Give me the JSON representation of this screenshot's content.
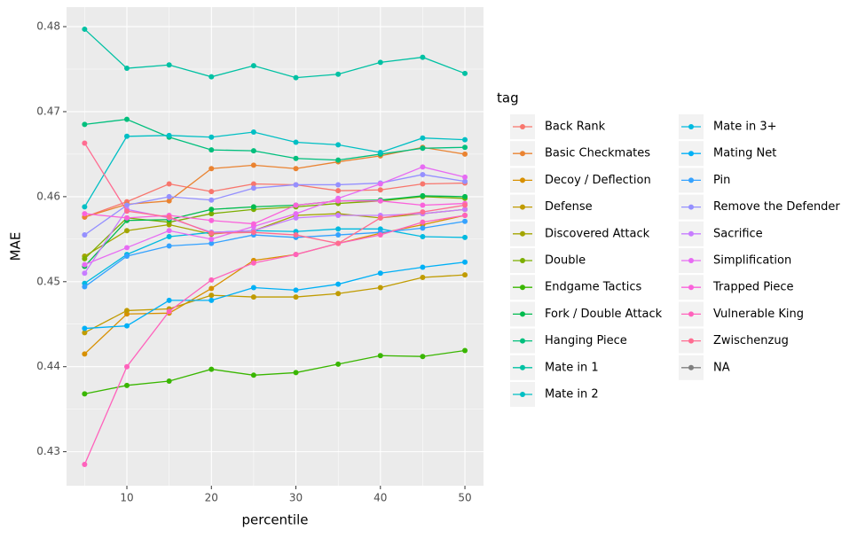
{
  "chart_data": {
    "type": "line",
    "x_label": "percentile",
    "y_label": "MAE",
    "legend_title": "tag",
    "x": [
      5,
      10,
      15,
      20,
      25,
      30,
      35,
      40,
      45,
      50
    ],
    "xlim": [
      2.86,
      52.2
    ],
    "xticks": [
      10,
      20,
      30,
      40,
      50
    ],
    "ylim": [
      0.426,
      0.4823
    ],
    "yticks": [
      0.43,
      0.44,
      0.45,
      0.46,
      0.47,
      0.48
    ],
    "grid": true,
    "series": [
      {
        "name": "Back Rank",
        "color": "#F8766D",
        "values": [
          0.4576,
          0.4594,
          0.4615,
          0.4606,
          0.4615,
          0.4614,
          0.4607,
          0.4608,
          0.4615,
          0.4616
        ]
      },
      {
        "name": "Basic Checkmates",
        "color": "#EA8331",
        "values": [
          0.4576,
          0.4591,
          0.4595,
          0.4633,
          0.4637,
          0.4633,
          0.4641,
          0.4648,
          0.4658,
          0.465
        ]
      },
      {
        "name": "Decoy / Deflection",
        "color": "#D89000",
        "values": [
          0.4415,
          0.4462,
          0.4463,
          0.4492,
          0.4525,
          0.4532,
          0.4545,
          0.4557,
          0.4567,
          0.4578
        ]
      },
      {
        "name": "Defense",
        "color": "#C09B00",
        "values": [
          0.444,
          0.4466,
          0.4468,
          0.4484,
          0.4482,
          0.4482,
          0.4486,
          0.4493,
          0.4505,
          0.4508
        ]
      },
      {
        "name": "Discovered Attack",
        "color": "#A3A500",
        "values": [
          0.453,
          0.456,
          0.4567,
          0.4556,
          0.456,
          0.4578,
          0.458,
          0.4575,
          0.458,
          0.4585
        ]
      },
      {
        "name": "Double",
        "color": "#7CAE00",
        "values": [
          0.4527,
          0.4575,
          0.457,
          0.458,
          0.4585,
          0.4588,
          0.4592,
          0.4595,
          0.46,
          0.4598
        ]
      },
      {
        "name": "Endgame Tactics",
        "color": "#39B600",
        "values": [
          0.4368,
          0.4378,
          0.4383,
          0.4397,
          0.439,
          0.4393,
          0.4403,
          0.4413,
          0.4412,
          0.4419
        ]
      },
      {
        "name": "Fork / Double Attack",
        "color": "#00BB4E",
        "values": [
          0.4518,
          0.4572,
          0.4573,
          0.4585,
          0.4588,
          0.459,
          0.4595,
          0.4596,
          0.4601,
          0.46
        ]
      },
      {
        "name": "Hanging Piece",
        "color": "#00BF7D",
        "values": [
          0.4685,
          0.4691,
          0.467,
          0.4655,
          0.4654,
          0.4645,
          0.4643,
          0.465,
          0.4657,
          0.4658
        ]
      },
      {
        "name": "Mate in 1",
        "color": "#00C1A3",
        "values": [
          0.4797,
          0.4751,
          0.4755,
          0.4741,
          0.4754,
          0.474,
          0.4744,
          0.4758,
          0.4764,
          0.4745
        ]
      },
      {
        "name": "Mate in 2",
        "color": "#00BFC4",
        "values": [
          0.4588,
          0.4671,
          0.4672,
          0.467,
          0.4676,
          0.4664,
          0.4661,
          0.4652,
          0.4669,
          0.4667
        ]
      },
      {
        "name": "Mate in 3+",
        "color": "#00BAE0",
        "values": [
          0.4498,
          0.4532,
          0.4553,
          0.4558,
          0.456,
          0.4559,
          0.4562,
          0.4562,
          0.4553,
          0.4552
        ]
      },
      {
        "name": "Mating Net",
        "color": "#00B0F6",
        "values": [
          0.4445,
          0.4448,
          0.4478,
          0.4478,
          0.4493,
          0.449,
          0.4497,
          0.451,
          0.4517,
          0.4523
        ]
      },
      {
        "name": "Pin",
        "color": "#35A2FF",
        "values": [
          0.4494,
          0.453,
          0.4542,
          0.4545,
          0.4555,
          0.4552,
          0.4555,
          0.4558,
          0.4563,
          0.4571
        ]
      },
      {
        "name": "Remove the Defender",
        "color": "#9590FF",
        "values": [
          0.4555,
          0.459,
          0.46,
          0.4596,
          0.461,
          0.4614,
          0.4614,
          0.4616,
          0.4626,
          0.4618
        ]
      },
      {
        "name": "Sacrifice",
        "color": "#C77CFF",
        "values": [
          0.451,
          0.4585,
          0.4575,
          0.4558,
          0.456,
          0.4575,
          0.4578,
          0.4578,
          0.458,
          0.4585
        ]
      },
      {
        "name": "Simplification",
        "color": "#E76BF3",
        "values": [
          0.452,
          0.454,
          0.456,
          0.455,
          0.4565,
          0.458,
          0.4598,
          0.4615,
          0.4635,
          0.4623
        ]
      },
      {
        "name": "Trapped Piece",
        "color": "#FA62DB",
        "values": [
          0.458,
          0.4575,
          0.4578,
          0.4572,
          0.4568,
          0.459,
          0.4595,
          0.4595,
          0.459,
          0.4592
        ]
      },
      {
        "name": "Vulnerable King",
        "color": "#FF62BC",
        "values": [
          0.4285,
          0.44,
          0.4465,
          0.4502,
          0.4522,
          0.4532,
          0.4545,
          0.4555,
          0.457,
          0.4578
        ]
      },
      {
        "name": "Zwischenzug",
        "color": "#FF6C91",
        "values": [
          0.4663,
          0.4583,
          0.4576,
          0.4557,
          0.4558,
          0.4555,
          0.4545,
          0.4575,
          0.4582,
          0.459
        ]
      },
      {
        "name": "NA",
        "color": "#7F7F7F",
        "values": [
          null,
          null,
          null,
          null,
          null,
          null,
          null,
          null,
          null,
          null
        ]
      }
    ]
  }
}
